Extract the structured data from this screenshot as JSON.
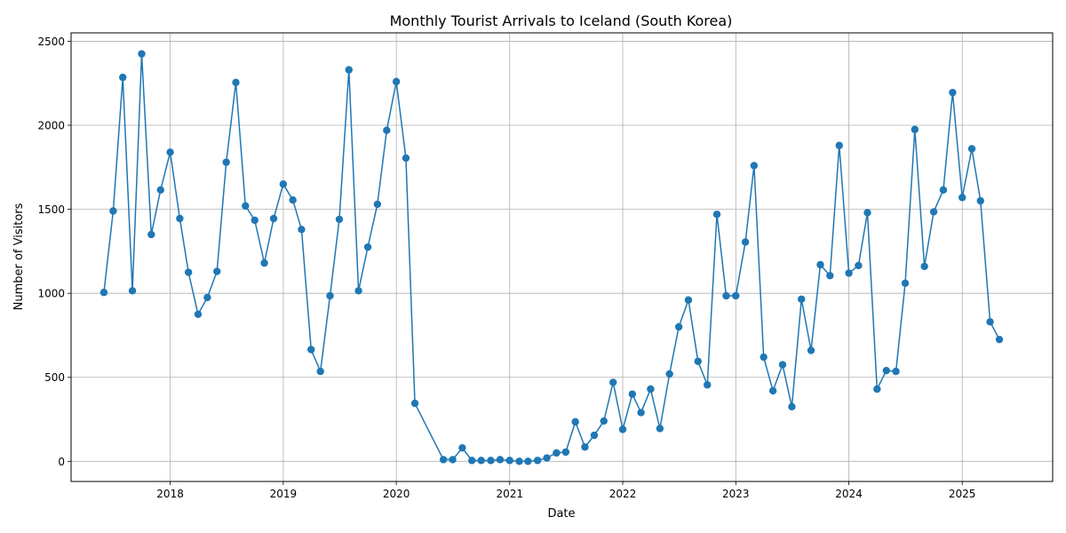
{
  "chart_data": {
    "type": "line",
    "title": "Monthly Tourist Arrivals to Iceland (South Korea)",
    "xlabel": "Date",
    "ylabel": "Number of Visitors",
    "x_tick_labels": [
      "2018",
      "2019",
      "2020",
      "2021",
      "2022",
      "2023",
      "2024",
      "2025"
    ],
    "y_tick_labels": [
      "0",
      "500",
      "1000",
      "1500",
      "2000",
      "2500"
    ],
    "xlim": [
      "2017-02-15",
      "2025-10-20"
    ],
    "ylim": [
      -120,
      2550
    ],
    "grid": true,
    "series_color": "#1f77b4",
    "series": [
      {
        "x": [
          "2017-06",
          "2017-07",
          "2017-08",
          "2017-09",
          "2017-10",
          "2017-11",
          "2017-12",
          "2018-01",
          "2018-02",
          "2018-03",
          "2018-04",
          "2018-05",
          "2018-06",
          "2018-07",
          "2018-08",
          "2018-09",
          "2018-10",
          "2018-11",
          "2018-12",
          "2019-01",
          "2019-02",
          "2019-03",
          "2019-04",
          "2019-05",
          "2019-06",
          "2019-07",
          "2019-08",
          "2019-09",
          "2019-10",
          "2019-11",
          "2019-12",
          "2020-01",
          "2020-02",
          "2020-03",
          "2020-06",
          "2020-07",
          "2020-08",
          "2020-09",
          "2020-10",
          "2020-11",
          "2020-12",
          "2021-01",
          "2021-02",
          "2021-03",
          "2021-04",
          "2021-05",
          "2021-06",
          "2021-07",
          "2021-08",
          "2021-09",
          "2021-10",
          "2021-11",
          "2021-12",
          "2022-01",
          "2022-02",
          "2022-03",
          "2022-04",
          "2022-05",
          "2022-06",
          "2022-07",
          "2022-08",
          "2022-09",
          "2022-10",
          "2022-11",
          "2022-12",
          "2023-01",
          "2023-02",
          "2023-03",
          "2023-04",
          "2023-05",
          "2023-06",
          "2023-07",
          "2023-08",
          "2023-09",
          "2023-10",
          "2023-11",
          "2023-12",
          "2024-01",
          "2024-02",
          "2024-03",
          "2024-04",
          "2024-05",
          "2024-06",
          "2024-07",
          "2024-08",
          "2024-09",
          "2024-10",
          "2024-11",
          "2024-12",
          "2025-01",
          "2025-02",
          "2025-03",
          "2025-04",
          "2025-05"
        ],
        "values": [
          1005,
          1490,
          2285,
          1015,
          2425,
          1350,
          1615,
          1840,
          1445,
          1125,
          875,
          975,
          1130,
          1780,
          2255,
          1520,
          1435,
          1180,
          1445,
          1650,
          1555,
          1380,
          665,
          535,
          985,
          1440,
          2330,
          1015,
          1275,
          1530,
          1970,
          2260,
          1805,
          345,
          10,
          10,
          80,
          5,
          5,
          5,
          10,
          5,
          0,
          0,
          5,
          20,
          50,
          55,
          235,
          85,
          155,
          240,
          470,
          190,
          400,
          290,
          430,
          195,
          520,
          800,
          960,
          595,
          455,
          1470,
          985,
          985,
          1305,
          1760,
          620,
          420,
          575,
          325,
          965,
          660,
          1170,
          1105,
          1880,
          1120,
          1165,
          1480,
          430,
          540,
          535,
          1060,
          1975,
          1160,
          1485,
          1615,
          2195,
          1570,
          1860,
          1550,
          830,
          725
        ]
      }
    ]
  }
}
